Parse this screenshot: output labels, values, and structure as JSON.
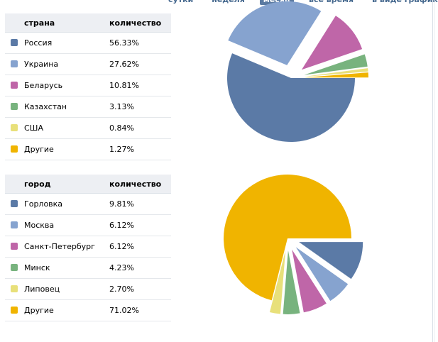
{
  "tabs": [
    {
      "label": "сутки",
      "active": false
    },
    {
      "label": "неделя",
      "active": false
    },
    {
      "label": "месяц",
      "active": true
    },
    {
      "label": "всё время",
      "active": false
    },
    {
      "label": "в виде графиков",
      "active": false
    }
  ],
  "chart_data": [
    {
      "type": "pie",
      "column_label": "страна",
      "value_label": "количество",
      "categories": [
        "Россия",
        "Украина",
        "Беларусь",
        "Казахстан",
        "США",
        "Другие"
      ],
      "values": [
        56.33,
        27.62,
        10.81,
        3.13,
        0.84,
        1.27
      ],
      "value_labels": [
        "56.33%",
        "27.62%",
        "10.81%",
        "3.13%",
        "0.84%",
        "1.27%"
      ],
      "colors": [
        "#5b7aa6",
        "#86a3cf",
        "#bf66a8",
        "#78b37e",
        "#e8e07a",
        "#f0b400"
      ],
      "exploded": [
        false,
        true,
        true,
        true,
        true,
        true
      ]
    },
    {
      "type": "pie",
      "column_label": "город",
      "value_label": "количество",
      "categories": [
        "Горловка",
        "Москва",
        "Санкт-Петербург",
        "Минск",
        "Липовец",
        "Другие"
      ],
      "values": [
        9.81,
        6.12,
        6.12,
        4.23,
        2.7,
        71.02
      ],
      "value_labels": [
        "9.81%",
        "6.12%",
        "6.12%",
        "4.23%",
        "2.70%",
        "71.02%"
      ],
      "colors": [
        "#5b7aa6",
        "#86a3cf",
        "#bf66a8",
        "#78b37e",
        "#e8e07a",
        "#f0b400"
      ],
      "exploded": [
        true,
        true,
        true,
        true,
        true,
        false
      ]
    }
  ]
}
